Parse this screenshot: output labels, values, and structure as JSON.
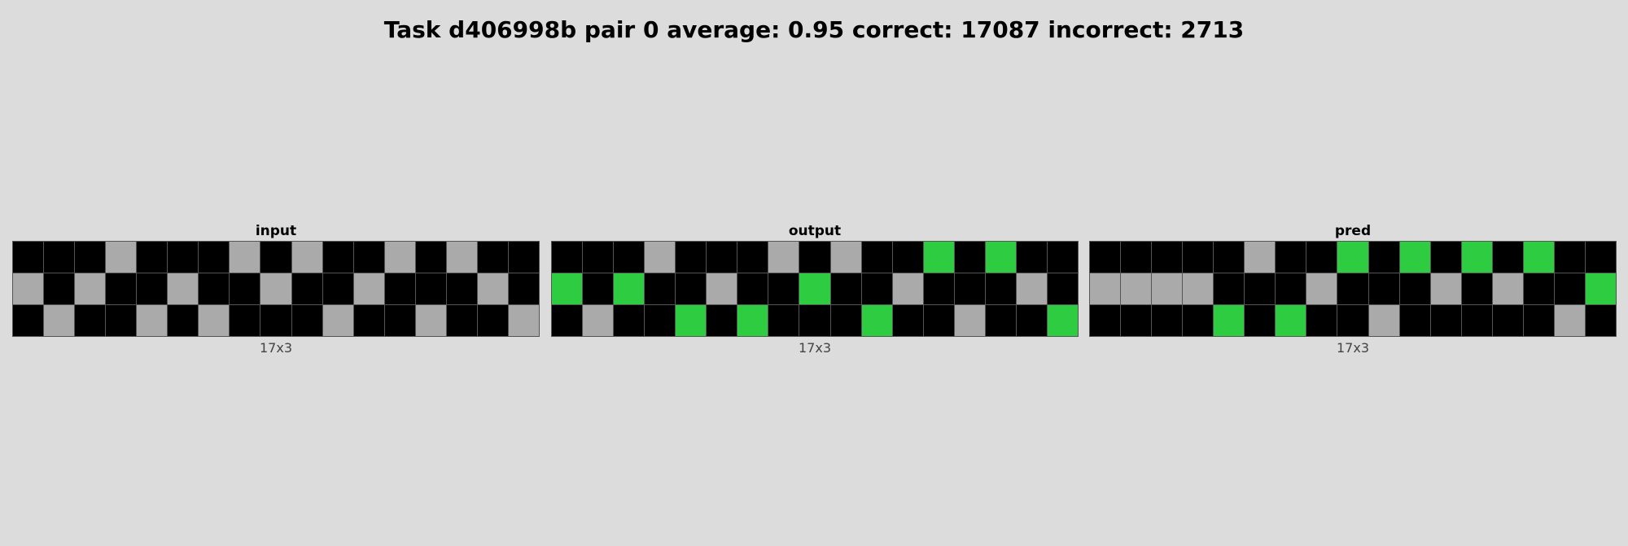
{
  "title": "Task d406998b pair 0 average: 0.95 correct: 17087 incorrect: 2713",
  "colors": {
    "0": "#000000",
    "3": "#2ecc40",
    "5": "#aaaaaa"
  },
  "panels": [
    {
      "label": "input",
      "size": "17x3",
      "grid": [
        [
          0,
          0,
          0,
          5,
          0,
          0,
          0,
          5,
          0,
          5,
          0,
          0,
          5,
          0,
          5,
          0,
          0
        ],
        [
          5,
          0,
          5,
          0,
          0,
          5,
          0,
          0,
          5,
          0,
          0,
          5,
          0,
          0,
          0,
          5,
          0
        ],
        [
          0,
          5,
          0,
          0,
          5,
          0,
          5,
          0,
          0,
          0,
          5,
          0,
          0,
          5,
          0,
          0,
          5
        ]
      ]
    },
    {
      "label": "output",
      "size": "17x3",
      "grid": [
        [
          0,
          0,
          0,
          5,
          0,
          0,
          0,
          5,
          0,
          5,
          0,
          0,
          3,
          0,
          3,
          0,
          0
        ],
        [
          3,
          0,
          3,
          0,
          0,
          5,
          0,
          0,
          3,
          0,
          0,
          5,
          0,
          0,
          0,
          5,
          0
        ],
        [
          0,
          5,
          0,
          0,
          3,
          0,
          3,
          0,
          0,
          0,
          3,
          0,
          0,
          5,
          0,
          0,
          3
        ]
      ]
    },
    {
      "label": "pred",
      "size": "17x3",
      "grid": [
        [
          0,
          0,
          0,
          0,
          0,
          5,
          0,
          0,
          3,
          0,
          3,
          0,
          3,
          0,
          3,
          0,
          0
        ],
        [
          5,
          5,
          5,
          5,
          0,
          0,
          0,
          5,
          0,
          0,
          0,
          5,
          0,
          5,
          0,
          0,
          3
        ],
        [
          0,
          0,
          0,
          0,
          3,
          0,
          3,
          0,
          0,
          5,
          0,
          0,
          0,
          0,
          0,
          5,
          0
        ]
      ]
    }
  ]
}
